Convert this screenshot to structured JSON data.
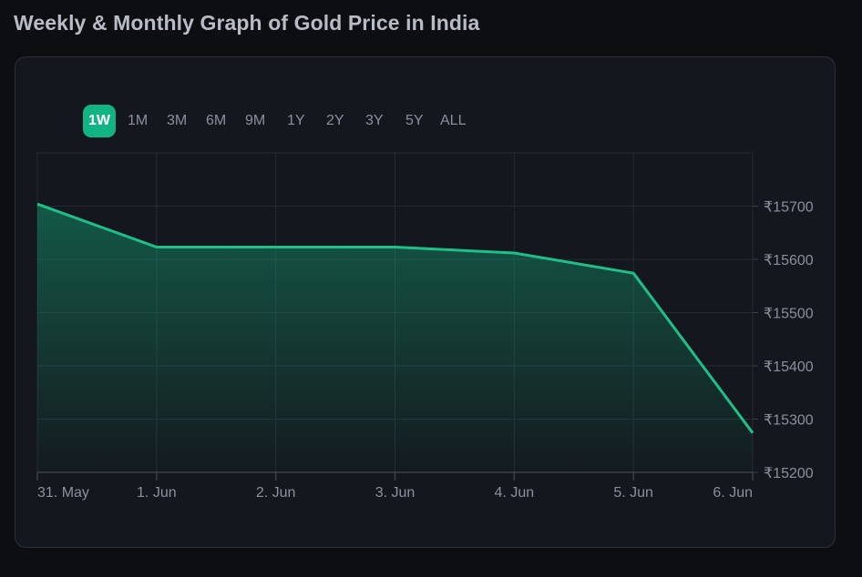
{
  "page": {
    "title": "Weekly & Monthly Graph of Gold Price in India"
  },
  "range_tabs": [
    {
      "label": "1W",
      "active": true
    },
    {
      "label": "1M",
      "active": false
    },
    {
      "label": "3M",
      "active": false
    },
    {
      "label": "6M",
      "active": false
    },
    {
      "label": "9M",
      "active": false
    },
    {
      "label": "1Y",
      "active": false
    },
    {
      "label": "2Y",
      "active": false
    },
    {
      "label": "3Y",
      "active": false
    },
    {
      "label": "5Y",
      "active": false
    },
    {
      "label": "ALL",
      "active": false
    }
  ],
  "colors": {
    "accent": "#12b582",
    "line": "#1fbf88",
    "grid": "#262b33",
    "axis": "#3a404a"
  },
  "chart_data": {
    "type": "area",
    "categories": [
      "31. May",
      "1. Jun",
      "2. Jun",
      "3. Jun",
      "4. Jun",
      "5. Jun",
      "6. Jun"
    ],
    "series": [
      {
        "values": [
          15704,
          15623,
          15623,
          15623,
          15612,
          15574,
          15274
        ]
      }
    ],
    "ylim": [
      15200,
      15800
    ],
    "yticks": [
      15200,
      15300,
      15400,
      15500,
      15600,
      15700
    ],
    "ytick_labels": [
      "₹15200",
      "₹15300",
      "₹15400",
      "₹15500",
      "₹15600",
      "₹15700"
    ],
    "xlabel": "",
    "ylabel": "",
    "grid": true,
    "legend": "none"
  }
}
